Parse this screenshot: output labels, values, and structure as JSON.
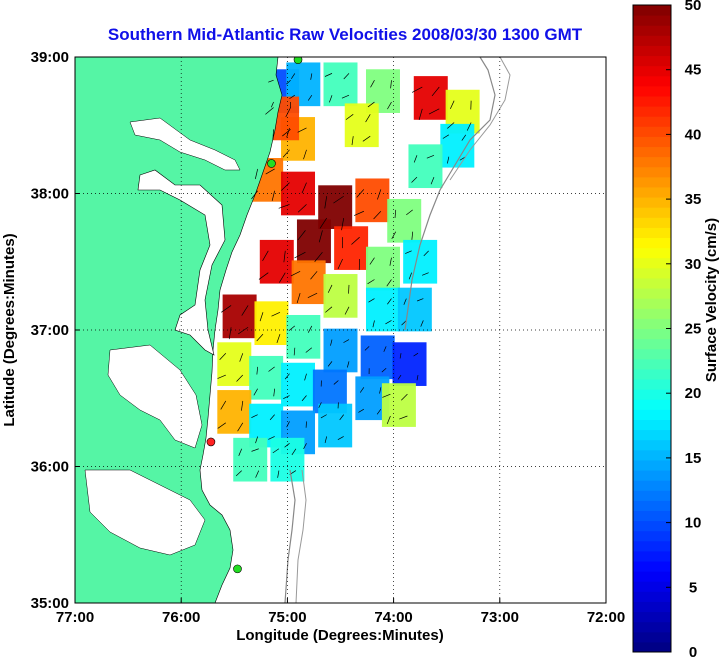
{
  "chart_data": {
    "type": "heatmap",
    "title": "Southern Mid-Atlantic Raw Velocities 2008/03/30 1300 GMT",
    "xlabel": "Longitude (Degrees:Minutes)",
    "ylabel": "Latitude (Degrees:Minutes)",
    "colorbar_label": "Surface Velocity (cm/s)",
    "x_ticks": [
      "77:00",
      "76:00",
      "75:00",
      "74:00",
      "73:00",
      "72:00"
    ],
    "y_ticks": [
      "39:00",
      "38:00",
      "37:00",
      "36:00",
      "35:00"
    ],
    "colorbar_ticks": [
      "0",
      "5",
      "10",
      "15",
      "20",
      "25",
      "30",
      "35",
      "40",
      "45",
      "50"
    ],
    "xlim": [
      -77,
      -72
    ],
    "ylim": [
      35,
      39
    ],
    "clim": [
      0,
      50
    ],
    "grid": true,
    "colormap": "jet",
    "land_color": "#55f5a5",
    "cells": [
      {
        "lon": -75.05,
        "lat": 38.75,
        "v": 10
      },
      {
        "lon": -74.85,
        "lat": 38.8,
        "v": 15
      },
      {
        "lon": -74.5,
        "lat": 38.8,
        "v": 22
      },
      {
        "lon": -74.1,
        "lat": 38.75,
        "v": 25
      },
      {
        "lon": -73.65,
        "lat": 38.7,
        "v": 45
      },
      {
        "lon": -73.35,
        "lat": 38.6,
        "v": 30
      },
      {
        "lon": -73.4,
        "lat": 38.35,
        "v": 18
      },
      {
        "lon": -73.7,
        "lat": 38.2,
        "v": 22
      },
      {
        "lon": -74.3,
        "lat": 38.5,
        "v": 30
      },
      {
        "lon": -74.9,
        "lat": 38.4,
        "v": 35
      },
      {
        "lon": -75.05,
        "lat": 38.55,
        "v": 40
      },
      {
        "lon": -75.2,
        "lat": 38.1,
        "v": 38
      },
      {
        "lon": -74.9,
        "lat": 38.0,
        "v": 45
      },
      {
        "lon": -74.55,
        "lat": 37.9,
        "v": 50
      },
      {
        "lon": -74.2,
        "lat": 37.95,
        "v": 40
      },
      {
        "lon": -73.9,
        "lat": 37.8,
        "v": 25
      },
      {
        "lon": -74.75,
        "lat": 37.65,
        "v": 50
      },
      {
        "lon": -74.4,
        "lat": 37.6,
        "v": 42
      },
      {
        "lon": -74.1,
        "lat": 37.45,
        "v": 25
      },
      {
        "lon": -73.75,
        "lat": 37.5,
        "v": 18
      },
      {
        "lon": -75.1,
        "lat": 37.5,
        "v": 45
      },
      {
        "lon": -74.8,
        "lat": 37.35,
        "v": 38
      },
      {
        "lon": -74.5,
        "lat": 37.25,
        "v": 28
      },
      {
        "lon": -74.1,
        "lat": 37.15,
        "v": 18
      },
      {
        "lon": -73.8,
        "lat": 37.15,
        "v": 16
      },
      {
        "lon": -75.45,
        "lat": 37.1,
        "v": 48
      },
      {
        "lon": -75.15,
        "lat": 37.05,
        "v": 32
      },
      {
        "lon": -74.85,
        "lat": 36.95,
        "v": 22
      },
      {
        "lon": -74.5,
        "lat": 36.85,
        "v": 14
      },
      {
        "lon": -74.15,
        "lat": 36.8,
        "v": 11
      },
      {
        "lon": -73.85,
        "lat": 36.75,
        "v": 8
      },
      {
        "lon": -75.5,
        "lat": 36.75,
        "v": 30
      },
      {
        "lon": -75.2,
        "lat": 36.65,
        "v": 22
      },
      {
        "lon": -74.9,
        "lat": 36.6,
        "v": 18
      },
      {
        "lon": -74.6,
        "lat": 36.55,
        "v": 12
      },
      {
        "lon": -74.2,
        "lat": 36.5,
        "v": 14
      },
      {
        "lon": -73.95,
        "lat": 36.45,
        "v": 28
      },
      {
        "lon": -75.5,
        "lat": 36.4,
        "v": 35
      },
      {
        "lon": -75.2,
        "lat": 36.3,
        "v": 18
      },
      {
        "lon": -74.9,
        "lat": 36.25,
        "v": 14
      },
      {
        "lon": -74.55,
        "lat": 36.3,
        "v": 16
      },
      {
        "lon": -75.35,
        "lat": 36.05,
        "v": 22
      },
      {
        "lon": -75.0,
        "lat": 36.05,
        "v": 20
      }
    ],
    "sites": [
      {
        "lon": -74.9,
        "lat": 38.98,
        "color": "#22dd22"
      },
      {
        "lon": -75.15,
        "lat": 38.22,
        "color": "#22dd22"
      },
      {
        "lon": -75.72,
        "lat": 36.18,
        "color": "#ff2222"
      },
      {
        "lon": -75.47,
        "lat": 35.25,
        "color": "#22dd22"
      }
    ]
  }
}
